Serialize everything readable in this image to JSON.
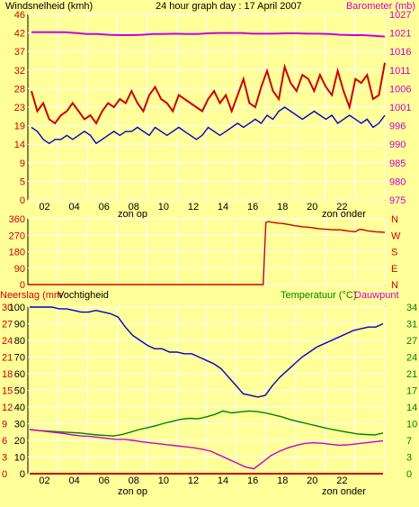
{
  "title": "24 hour graph day : 17 April 2007",
  "colors": {
    "background": "#ffff99",
    "grid": "#ffffff",
    "wind": "#cc0000",
    "wind_gust": "#cc0000",
    "barometer": "#cc00cc",
    "humidity": "#0000cc",
    "temperature": "#008000",
    "dewpoint": "#cc00cc",
    "rain": "#cc0000",
    "direction": "#cc0000"
  },
  "labels": {
    "wind": "Windsnelheid (kmh)",
    "barometer": "Barometer (mb)",
    "rain": "Neerslag (mm",
    "humidity": "Vochtigheid",
    "temperature": "Temperatuur (°C)",
    "dewpoint": "Dauwpunt",
    "sunrise": "zon op",
    "sunset": "zon onder"
  },
  "chart_data": [
    {
      "type": "line",
      "title": "24 hour graph day : 17 April 2007",
      "x_ticks": [
        "02",
        "04",
        "06",
        "08",
        "10",
        "12",
        "14",
        "16",
        "18",
        "20",
        "22"
      ],
      "y_left": {
        "label": "Windsnelheid (kmh)",
        "ticks": [
          0,
          5,
          9,
          14,
          19,
          23,
          28,
          32,
          37,
          42,
          46
        ],
        "ylim": [
          0,
          46
        ]
      },
      "y_right": {
        "label": "Barometer (mb)",
        "ticks": [
          975,
          980,
          985,
          990,
          996,
          1001,
          1006,
          1011,
          1016,
          1021,
          1027
        ],
        "ylim": [
          975,
          1027
        ]
      },
      "series": [
        {
          "name": "Windsnelheid (kmh)",
          "axis": "left",
          "values": [
            27,
            22,
            24,
            20,
            19,
            21,
            22,
            24,
            22,
            20,
            21,
            19,
            22,
            24,
            23,
            25,
            24,
            27,
            24,
            22,
            26,
            28,
            25,
            24,
            22,
            26,
            25,
            24,
            23,
            22,
            25,
            27,
            24,
            26,
            22,
            26,
            30,
            24,
            23,
            28,
            32,
            27,
            25,
            33,
            29,
            27,
            31,
            30,
            27,
            31,
            28,
            26,
            32,
            27,
            23,
            30,
            29,
            31,
            25,
            26,
            34
          ]
        },
        {
          "values": [
            18,
            17,
            15,
            14,
            15,
            15,
            16,
            15,
            16,
            17,
            16,
            14,
            15,
            16,
            17,
            16,
            17,
            17,
            18,
            17,
            16,
            18,
            17,
            16,
            17,
            18,
            17,
            16,
            15,
            16,
            18,
            17,
            16,
            17,
            18,
            19,
            18,
            19,
            20,
            19,
            21,
            20,
            22,
            23,
            22,
            21,
            20,
            21,
            22,
            21,
            20,
            21,
            19,
            20,
            21,
            20,
            19,
            20,
            18,
            19,
            21
          ]
        },
        {
          "name": "Barometer (mb)",
          "axis": "right",
          "values": [
            1022,
            1022,
            1022,
            1022,
            1021.8,
            1021.5,
            1021.5,
            1021.3,
            1021.2,
            1021.2,
            1021.3,
            1021.5,
            1021.5,
            1021.6,
            1021.5,
            1021.5,
            1021.7,
            1021.8,
            1021.8,
            1021.8,
            1021.6,
            1021.6,
            1021.6,
            1021.7,
            1021.7,
            1021.6,
            1021.6,
            1021.5,
            1021.3,
            1021.2,
            1021.2,
            1021.0,
            1020.8
          ]
        }
      ]
    },
    {
      "type": "line",
      "title": "",
      "x_ticks": [
        "02",
        "04",
        "06",
        "08",
        "10",
        "12",
        "14",
        "16",
        "18",
        "20",
        "22"
      ],
      "y_left": {
        "label": "",
        "ticks": [
          0,
          90,
          180,
          270,
          360
        ],
        "ylim": [
          0,
          360
        ]
      },
      "y_right": {
        "label": "",
        "ticks": [
          "N",
          "E",
          "S",
          "W",
          "N"
        ]
      },
      "series": [
        {
          "values": [
            0,
            0,
            0,
            0,
            0,
            0,
            0,
            0,
            0,
            0,
            0,
            0,
            0,
            0,
            0,
            0,
            0,
            0,
            0,
            0,
            0,
            0,
            0,
            0,
            0,
            0,
            0,
            0,
            0,
            0,
            0,
            0,
            0,
            0,
            0,
            0,
            0,
            0,
            0,
            0,
            0,
            0,
            0,
            0,
            0,
            0,
            0,
            0,
            0,
            0,
            0,
            0,
            0,
            0,
            0,
            0,
            0,
            0,
            0,
            0,
            0,
            0,
            0,
            0,
            0,
            0,
            0,
            0,
            0,
            0,
            0,
            0,
            0,
            0,
            0,
            0,
            0,
            0,
            0,
            0,
            0,
            0,
            0,
            0,
            0,
            0,
            0,
            0,
            0,
            0,
            340,
            345,
            342,
            340,
            338,
            336,
            335,
            333,
            330,
            328,
            325,
            322,
            320,
            318,
            316,
            315,
            314,
            312,
            310,
            308,
            306,
            305,
            304,
            303,
            302,
            300,
            300,
            300,
            300,
            298,
            296,
            294,
            292,
            290,
            290,
            300,
            302,
            300,
            296,
            293,
            292,
            290,
            288,
            288,
            287,
            286
          ]
        }
      ]
    },
    {
      "type": "line",
      "title": "",
      "x_ticks": [
        "02",
        "04",
        "06",
        "08",
        "10",
        "12",
        "14",
        "16",
        "18",
        "20",
        "22"
      ],
      "y_left": {
        "label": "Neerslag (mm",
        "ticks": [
          0,
          3,
          6,
          9,
          12,
          15,
          18,
          21,
          24,
          27,
          30
        ],
        "ylim": [
          0,
          30
        ]
      },
      "y_left2": {
        "label": "Vochtigheid",
        "ticks": [
          0,
          10,
          20,
          30,
          40,
          50,
          60,
          70,
          80,
          90,
          100
        ],
        "ylim": [
          0,
          100
        ]
      },
      "y_right": {
        "label": "Temperatuur (°C)",
        "ticks": [
          0,
          3,
          7,
          10,
          14,
          17,
          21,
          24,
          27,
          31,
          34
        ],
        "ylim": [
          0,
          34
        ]
      },
      "series": [
        {
          "name": "Vochtigheid",
          "axis": "left2",
          "values": [
            100,
            100,
            100,
            100,
            99,
            99,
            98,
            97,
            97,
            98,
            97,
            96,
            94,
            88,
            83,
            80,
            77,
            75,
            75,
            73,
            73,
            72,
            72,
            70,
            68,
            66,
            63,
            58,
            53,
            48,
            47,
            46,
            47,
            53,
            58,
            62,
            66,
            70,
            73,
            76,
            78,
            80,
            82,
            84,
            86,
            87,
            88,
            88,
            90
          ]
        },
        {
          "name": "Temperatuur (°C)",
          "axis": "right",
          "values": [
            9,
            8.8,
            8.7,
            8.6,
            8.5,
            8.4,
            8.3,
            8.1,
            7.9,
            7.8,
            7.7,
            8.0,
            8.5,
            9.0,
            9.4,
            9.8,
            10.3,
            10.7,
            11.1,
            11.3,
            11.2,
            11.6,
            12.1,
            12.8,
            12.4,
            12.6,
            12.8,
            12.7,
            12.4,
            12.0,
            11.6,
            11.0,
            10.6,
            10.2,
            9.8,
            9.4,
            9.0,
            8.7,
            8.4,
            8.1,
            8.0,
            7.9,
            8.3
          ]
        },
        {
          "name": "Dauwpunt",
          "axis": "right",
          "values": [
            9,
            8.8,
            8.6,
            8.4,
            8.2,
            7.9,
            7.7,
            7.6,
            7.4,
            7.2,
            7.0,
            7.0,
            6.8,
            6.5,
            6.3,
            6.1,
            5.9,
            5.7,
            5.5,
            5.3,
            5.0,
            4.6,
            3.8,
            3.0,
            2.2,
            1.4,
            1.0,
            2.3,
            3.7,
            4.6,
            5.3,
            5.8,
            6.2,
            6.3,
            6.2,
            6.0,
            5.8,
            5.9,
            6.1,
            6.3,
            6.5,
            6.7
          ]
        },
        {
          "name": "Neerslag (mm",
          "axis": "left",
          "values": [
            0,
            0
          ]
        }
      ]
    }
  ]
}
